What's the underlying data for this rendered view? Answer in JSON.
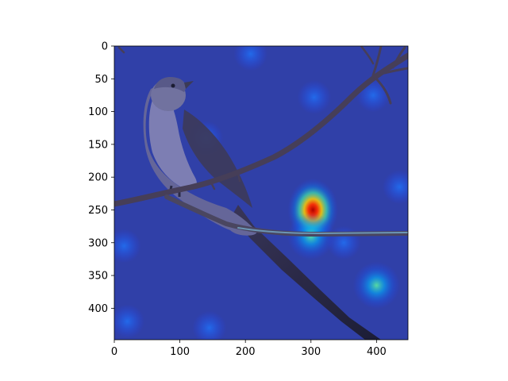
{
  "chart_data": {
    "type": "heatmap",
    "title": "",
    "xlabel": "",
    "ylabel": "",
    "image_content": "photo of a bird perched on a branch with a jet-colormap attention heatmap overlay",
    "xlim": [
      0,
      448
    ],
    "ylim": [
      448,
      0
    ],
    "x_ticks": [
      "0",
      "100",
      "200",
      "300",
      "400"
    ],
    "y_ticks": [
      "0",
      "50",
      "100",
      "150",
      "200",
      "250",
      "300",
      "350",
      "400"
    ],
    "colormap": "jet",
    "base_color": "#3040a8",
    "hotspots": [
      {
        "x": 303,
        "y": 250,
        "intensity": 1.0
      },
      {
        "x": 300,
        "y": 290,
        "intensity": 0.55
      },
      {
        "x": 350,
        "y": 300,
        "intensity": 0.35
      },
      {
        "x": 400,
        "y": 365,
        "intensity": 0.45
      },
      {
        "x": 395,
        "y": 75,
        "intensity": 0.35
      },
      {
        "x": 305,
        "y": 78,
        "intensity": 0.22
      },
      {
        "x": 208,
        "y": 12,
        "intensity": 0.2
      },
      {
        "x": 140,
        "y": 140,
        "intensity": 0.2
      },
      {
        "x": 145,
        "y": 430,
        "intensity": 0.2
      },
      {
        "x": 15,
        "y": 305,
        "intensity": 0.2
      },
      {
        "x": 435,
        "y": 215,
        "intensity": 0.15
      },
      {
        "x": 20,
        "y": 420,
        "intensity": 0.15
      }
    ]
  }
}
